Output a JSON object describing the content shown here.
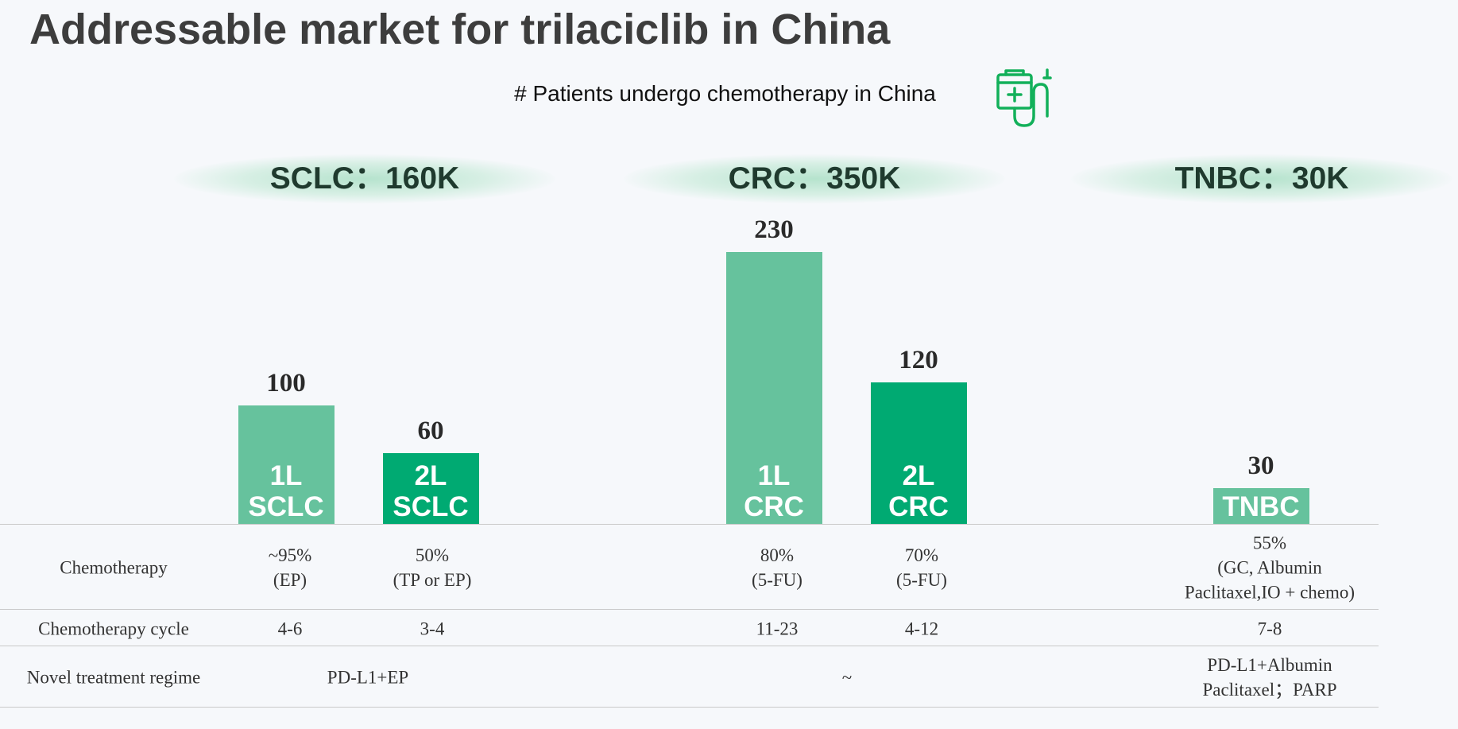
{
  "title": "Addressable market for trilaciclib in China",
  "chart_data": {
    "type": "bar",
    "subtitle": "# Patients undergo chemotherapy in China",
    "groups": [
      "SCLC：160K",
      "CRC：350K",
      "TNBC：30K"
    ],
    "categories": [
      "1L\nSCLC",
      "2L\nSCLC",
      "1L\nCRC",
      "2L\nCRC",
      "TNBC"
    ],
    "values": [
      100,
      60,
      230,
      120,
      30
    ],
    "colors": [
      "#66c29d",
      "#00aa72",
      "#66c29d",
      "#00aa72",
      "#66c29d"
    ]
  },
  "table": {
    "rows": [
      {
        "label": "Chemotherapy",
        "cells": [
          "~95%\n(EP)",
          "50%\n(TP or EP)",
          "80%\n(5-FU)",
          "70%\n(5-FU)",
          "55%\n(GC, Albumin\nPaclitaxel,IO + chemo)"
        ]
      },
      {
        "label": "Chemotherapy cycle",
        "cells": [
          "4-6",
          "3-4",
          "11-23",
          "4-12",
          "7-8"
        ]
      },
      {
        "label": "Novel treatment regime",
        "cells": [
          "PD-L1+EP",
          "~",
          "PD-L1+Albumin\nPaclitaxel；PARP"
        ]
      }
    ]
  }
}
